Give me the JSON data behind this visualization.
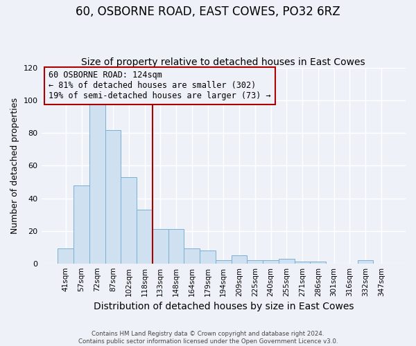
{
  "title": "60, OSBORNE ROAD, EAST COWES, PO32 6RZ",
  "subtitle": "Size of property relative to detached houses in East Cowes",
  "xlabel": "Distribution of detached houses by size in East Cowes",
  "ylabel": "Number of detached properties",
  "footer_lines": [
    "Contains HM Land Registry data © Crown copyright and database right 2024.",
    "Contains public sector information licensed under the Open Government Licence v3.0."
  ],
  "bar_labels": [
    "41sqm",
    "57sqm",
    "72sqm",
    "87sqm",
    "102sqm",
    "118sqm",
    "133sqm",
    "148sqm",
    "164sqm",
    "179sqm",
    "194sqm",
    "209sqm",
    "225sqm",
    "240sqm",
    "255sqm",
    "271sqm",
    "286sqm",
    "301sqm",
    "316sqm",
    "332sqm",
    "347sqm"
  ],
  "bar_values": [
    9,
    48,
    100,
    82,
    53,
    33,
    21,
    21,
    9,
    8,
    2,
    5,
    2,
    2,
    3,
    1,
    1,
    0,
    0,
    2,
    0
  ],
  "bar_color": "#cfe0f0",
  "bar_edgecolor": "#7ab0d4",
  "vline_color": "#aa0000",
  "annotation_title": "60 OSBORNE ROAD: 124sqm",
  "annotation_line1": "← 81% of detached houses are smaller (302)",
  "annotation_line2": "19% of semi-detached houses are larger (73) →",
  "annotation_box_edgecolor": "#aa0000",
  "ylim": [
    0,
    120
  ],
  "yticks": [
    0,
    20,
    40,
    60,
    80,
    100,
    120
  ],
  "background_color": "#eef2f8",
  "plot_bg_color": "#eef2f8",
  "grid_color": "#ffffff",
  "title_fontsize": 12,
  "subtitle_fontsize": 10,
  "ylabel_fontsize": 9,
  "xlabel_fontsize": 10
}
